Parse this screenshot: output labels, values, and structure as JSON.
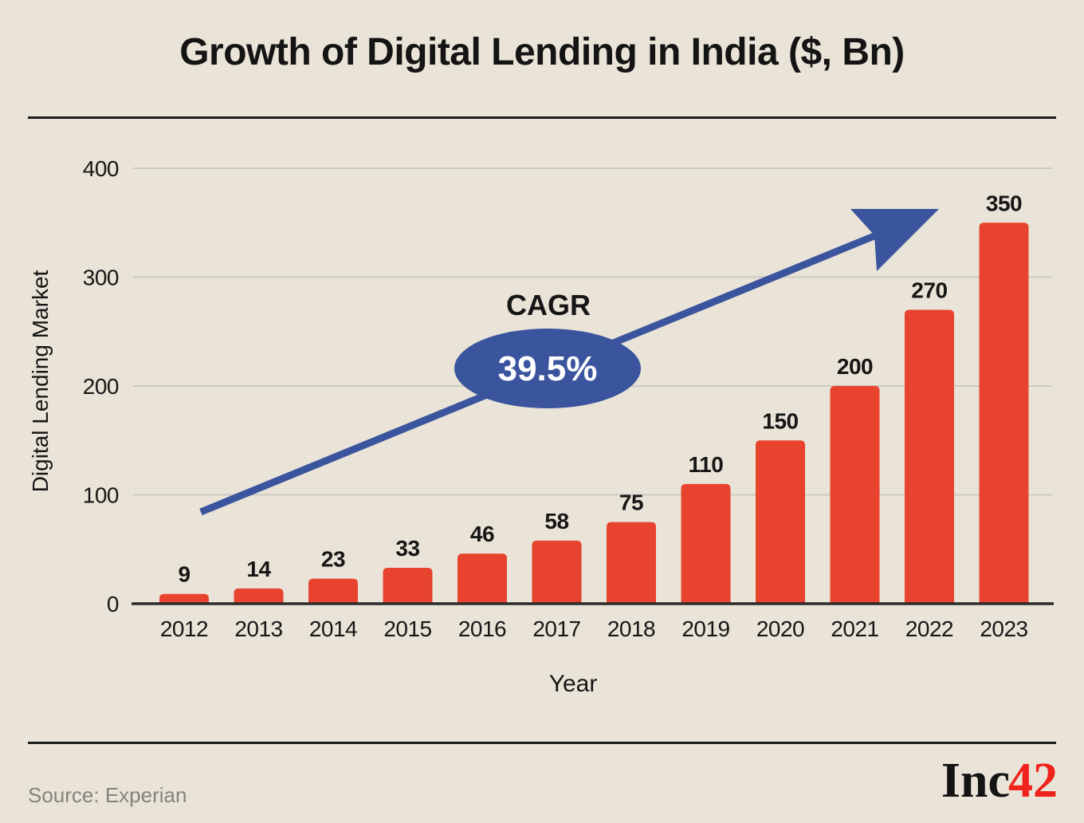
{
  "title": "Growth of Digital Lending in India ($, Bn)",
  "chart_data": {
    "type": "bar",
    "categories": [
      "2012",
      "2013",
      "2014",
      "2015",
      "2016",
      "2017",
      "2018",
      "2019",
      "2020",
      "2021",
      "2022",
      "2023"
    ],
    "values": [
      9,
      14,
      23,
      33,
      46,
      58,
      75,
      110,
      150,
      200,
      270,
      350
    ],
    "title": "Growth of Digital Lending in India ($, Bn)",
    "xlabel": "Year",
    "ylabel": "Digital Lending Market",
    "ylim": [
      0,
      400
    ],
    "yticks": [
      0,
      100,
      200,
      300,
      400
    ],
    "grid": true,
    "legend": "none",
    "annotation": {
      "label": "CAGR",
      "value": "39.5%"
    }
  },
  "footer": {
    "source": "Source: Experian",
    "logo_inc": "Inc",
    "logo_42": "42"
  },
  "colors": {
    "background": "#e9e4d7",
    "bar": "#e8432f",
    "accent_blue": "#3a549e",
    "text": "#161616",
    "grid": "#cccbc4",
    "axis": "#2b2b2b",
    "muted": "#85847c",
    "logo_red": "#f0231c",
    "annotation_text": "#ffffff"
  }
}
